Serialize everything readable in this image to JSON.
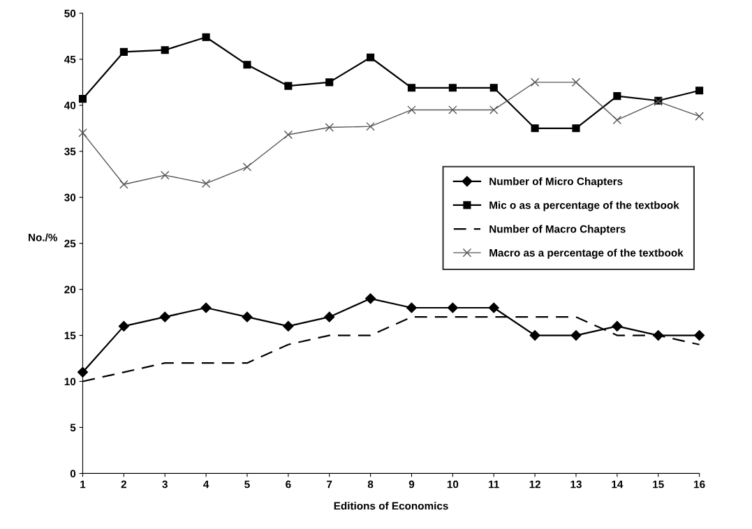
{
  "chart_data": {
    "type": "line",
    "xlabel": "Editions of Economics",
    "ylabel": "No./%",
    "x": [
      1,
      2,
      3,
      4,
      5,
      6,
      7,
      8,
      9,
      10,
      11,
      12,
      13,
      14,
      15,
      16
    ],
    "series": [
      {
        "name": "Number of Micro Chapters",
        "color": "#000000",
        "marker": "diamond",
        "line_style": "solid",
        "values": [
          11,
          16,
          17,
          18,
          17,
          16,
          17,
          19,
          18,
          18,
          18,
          15,
          15,
          16,
          15,
          15
        ]
      },
      {
        "name": "Mic o as a percentage of the textbook",
        "color": "#000000",
        "marker": "square",
        "line_style": "solid",
        "values": [
          40.7,
          45.8,
          46.0,
          47.4,
          44.4,
          42.1,
          42.5,
          45.2,
          41.9,
          41.9,
          41.9,
          37.5,
          37.5,
          41.0,
          40.5,
          41.6
        ]
      },
      {
        "name": "Number of Macro Chapters",
        "color": "#000000",
        "marker": "none",
        "line_style": "dashed",
        "values": [
          10,
          11,
          12,
          12,
          12,
          14,
          15,
          15,
          17,
          17,
          17,
          17,
          17,
          15,
          15,
          14
        ]
      },
      {
        "name": "Macro as a percentage of the textbook",
        "color": "#555555",
        "marker": "cross",
        "line_style": "solid",
        "values": [
          37.0,
          31.4,
          32.4,
          31.5,
          33.3,
          36.8,
          37.6,
          37.7,
          39.5,
          39.5,
          39.5,
          42.5,
          42.5,
          38.4,
          40.4,
          38.8
        ]
      }
    ],
    "xlim": [
      1,
      16
    ],
    "xticks": [
      1,
      2,
      3,
      4,
      5,
      6,
      7,
      8,
      9,
      10,
      11,
      12,
      13,
      14,
      15,
      16
    ],
    "ylim": [
      0,
      50
    ],
    "yticks": [
      0,
      5,
      10,
      15,
      20,
      25,
      30,
      35,
      40,
      45,
      50
    ],
    "grid": false,
    "legend": "right"
  }
}
